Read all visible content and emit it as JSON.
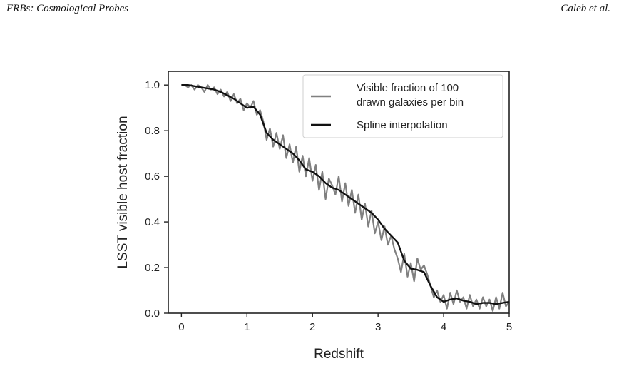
{
  "header": {
    "left": "FRBs: Cosmological Probes",
    "right": "Caleb et al."
  },
  "chart_data": {
    "type": "line",
    "xlabel": "Redshift",
    "ylabel": "LSST visible host fraction",
    "xlim": [
      -0.2,
      5.0
    ],
    "ylim": [
      0.0,
      1.06
    ],
    "xticks": [
      0,
      1,
      2,
      3,
      4,
      5
    ],
    "yticks": [
      0.0,
      0.2,
      0.4,
      0.6,
      0.8,
      1.0
    ],
    "xtick_labels": [
      "0",
      "1",
      "2",
      "3",
      "4",
      "5"
    ],
    "ytick_labels": [
      "0.0",
      "0.2",
      "0.4",
      "0.6",
      "0.8",
      "1.0"
    ],
    "grid": false,
    "legend_position": "top-right",
    "series": [
      {
        "name": "Visible fraction of 100 drawn galaxies per bin",
        "color": "#808080",
        "x": [
          0.0,
          0.05,
          0.1,
          0.15,
          0.2,
          0.25,
          0.3,
          0.35,
          0.4,
          0.45,
          0.5,
          0.55,
          0.6,
          0.65,
          0.7,
          0.75,
          0.8,
          0.85,
          0.9,
          0.95,
          1.0,
          1.05,
          1.1,
          1.15,
          1.2,
          1.25,
          1.3,
          1.35,
          1.4,
          1.45,
          1.5,
          1.55,
          1.6,
          1.65,
          1.7,
          1.75,
          1.8,
          1.85,
          1.9,
          1.95,
          2.0,
          2.05,
          2.1,
          2.15,
          2.2,
          2.25,
          2.3,
          2.35,
          2.4,
          2.45,
          2.5,
          2.55,
          2.6,
          2.65,
          2.7,
          2.75,
          2.8,
          2.85,
          2.9,
          2.95,
          3.0,
          3.05,
          3.1,
          3.15,
          3.2,
          3.25,
          3.3,
          3.35,
          3.4,
          3.45,
          3.5,
          3.55,
          3.6,
          3.65,
          3.7,
          3.75,
          3.8,
          3.85,
          3.9,
          3.95,
          4.0,
          4.05,
          4.1,
          4.15,
          4.2,
          4.25,
          4.3,
          4.35,
          4.4,
          4.45,
          4.5,
          4.55,
          4.6,
          4.65,
          4.7,
          4.75,
          4.8,
          4.85,
          4.9,
          4.95,
          5.0
        ],
        "y": [
          1.0,
          1.0,
          0.99,
          1.0,
          0.98,
          1.0,
          0.99,
          0.97,
          1.0,
          0.98,
          0.99,
          0.96,
          0.98,
          0.95,
          0.97,
          0.93,
          0.96,
          0.92,
          0.94,
          0.89,
          0.92,
          0.9,
          0.93,
          0.87,
          0.89,
          0.84,
          0.76,
          0.81,
          0.73,
          0.79,
          0.72,
          0.78,
          0.68,
          0.74,
          0.66,
          0.73,
          0.62,
          0.69,
          0.6,
          0.68,
          0.58,
          0.65,
          0.54,
          0.62,
          0.5,
          0.59,
          0.56,
          0.52,
          0.6,
          0.49,
          0.57,
          0.47,
          0.54,
          0.44,
          0.52,
          0.41,
          0.48,
          0.38,
          0.45,
          0.35,
          0.4,
          0.32,
          0.38,
          0.3,
          0.34,
          0.28,
          0.24,
          0.18,
          0.26,
          0.16,
          0.22,
          0.14,
          0.24,
          0.19,
          0.21,
          0.17,
          0.12,
          0.07,
          0.1,
          0.05,
          0.08,
          0.02,
          0.09,
          0.04,
          0.1,
          0.05,
          0.07,
          0.02,
          0.08,
          0.03,
          0.06,
          0.02,
          0.07,
          0.03,
          0.06,
          0.01,
          0.07,
          0.02,
          0.09,
          0.03,
          0.05
        ]
      },
      {
        "name": "Spline interpolation",
        "color": "#111111",
        "x": [
          0.0,
          0.1,
          0.2,
          0.3,
          0.4,
          0.5,
          0.6,
          0.7,
          0.8,
          0.9,
          1.0,
          1.1,
          1.2,
          1.3,
          1.4,
          1.5,
          1.6,
          1.7,
          1.8,
          1.9,
          2.0,
          2.1,
          2.2,
          2.3,
          2.4,
          2.5,
          2.6,
          2.7,
          2.8,
          2.9,
          3.0,
          3.1,
          3.2,
          3.3,
          3.4,
          3.5,
          3.6,
          3.7,
          3.8,
          3.9,
          4.0,
          4.1,
          4.2,
          4.3,
          4.4,
          4.5,
          4.6,
          4.7,
          4.8,
          4.9,
          5.0
        ],
        "y": [
          1.0,
          1.0,
          0.995,
          0.99,
          0.985,
          0.98,
          0.97,
          0.955,
          0.94,
          0.92,
          0.9,
          0.905,
          0.87,
          0.79,
          0.76,
          0.74,
          0.72,
          0.7,
          0.67,
          0.63,
          0.62,
          0.6,
          0.57,
          0.55,
          0.54,
          0.52,
          0.5,
          0.48,
          0.46,
          0.44,
          0.41,
          0.37,
          0.34,
          0.31,
          0.23,
          0.195,
          0.19,
          0.18,
          0.12,
          0.07,
          0.05,
          0.06,
          0.065,
          0.055,
          0.05,
          0.04,
          0.045,
          0.045,
          0.04,
          0.045,
          0.05
        ]
      }
    ]
  }
}
